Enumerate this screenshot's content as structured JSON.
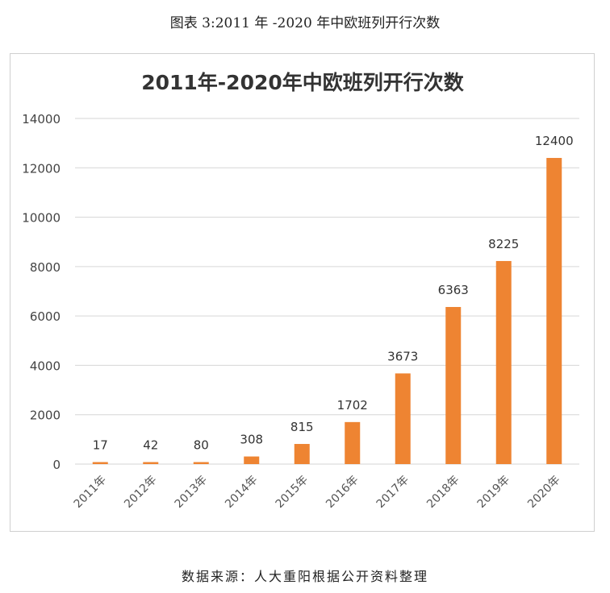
{
  "figure_caption": "图表 3:2011 年 -2020 年中欧班列开行次数",
  "source_note": "数据来源：人大重阳根据公开资料整理",
  "chart_data": {
    "type": "bar",
    "title": "2011年-2020年中欧班列开行次数",
    "categories": [
      "2011年",
      "2012年",
      "2013年",
      "2014年",
      "2015年",
      "2016年",
      "2017年",
      "2018年",
      "2019年",
      "2020年"
    ],
    "values": [
      17,
      42,
      80,
      308,
      815,
      1702,
      3673,
      6363,
      8225,
      12400
    ],
    "data_labels": [
      "17",
      "42",
      "80",
      "308",
      "815",
      "1702",
      "3673",
      "6363",
      "8225",
      "12400"
    ],
    "ylim": [
      0,
      14000
    ],
    "yticks": [
      0,
      2000,
      4000,
      6000,
      8000,
      10000,
      12000,
      14000
    ],
    "ytick_labels": [
      "0",
      "2000",
      "4000",
      "6000",
      "8000",
      "10000",
      "12000",
      "14000"
    ],
    "grid": true,
    "bar_color": "#ee8432",
    "grid_color": "#d6d6d6",
    "xtick_rotation": "rotated about 45 degrees"
  }
}
